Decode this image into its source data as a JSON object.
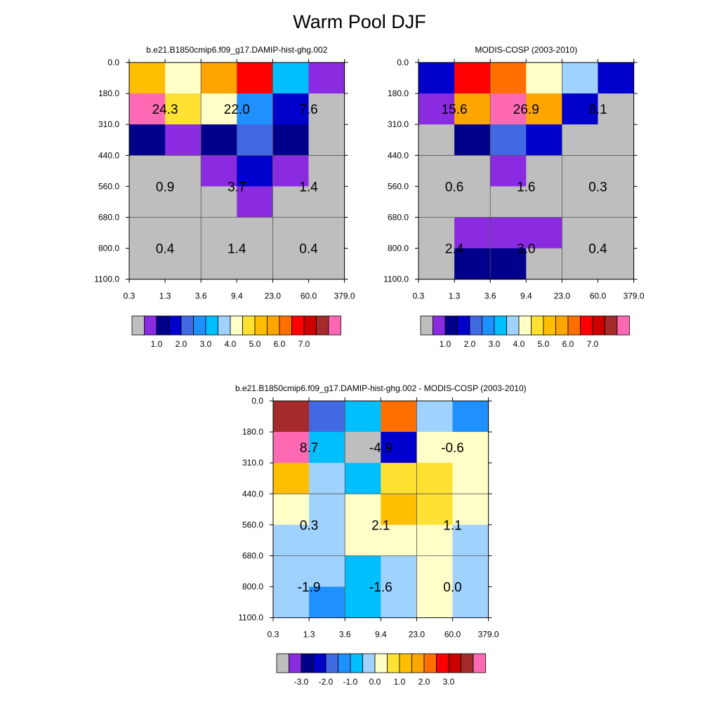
{
  "figure": {
    "title": "Warm Pool DJF"
  },
  "palette": {
    "c0": "#bebebe",
    "c1": "#8a2be2",
    "c2": "#00008b",
    "c3": "#0000cd",
    "c4": "#4169e1",
    "c5": "#1e90ff",
    "c6": "#00bfff",
    "c7": "#a0d2ff",
    "c8": "#ffffc8",
    "c9": "#ffe132",
    "c10": "#ffbf00",
    "c11": "#ffa500",
    "c12": "#ff6f00",
    "c13": "#ff0000",
    "c14": "#cd0000",
    "c15": "#a52a2a",
    "c16": "#ff69b4"
  },
  "chart_data": [
    {
      "type": "heatmap",
      "title": "b.e21.B1850cmip6.f09_g17.DAMIP-hist-ghg.002",
      "x_tick_labels": [
        "0.3",
        "1.3",
        "3.6",
        "9.4",
        "23.0",
        "60.0",
        "379.0"
      ],
      "y_tick_labels": [
        "0.0",
        "180.0",
        "310.0",
        "440.0",
        "560.0",
        "680.0",
        "800.0",
        "1100.0"
      ],
      "cell_color_index": [
        [
          10,
          8,
          11,
          13,
          6,
          1
        ],
        [
          16,
          9,
          8,
          5,
          3,
          0
        ],
        [
          2,
          1,
          2,
          4,
          2,
          0
        ],
        [
          0,
          0,
          1,
          3,
          1,
          0
        ],
        [
          0,
          0,
          0,
          1,
          0,
          0
        ],
        [
          0,
          0,
          0,
          0,
          0,
          0
        ],
        [
          0,
          0,
          0,
          0,
          0,
          0
        ]
      ],
      "block_values": [
        [
          "24.3",
          "22.0",
          "7.6"
        ],
        [
          "0.9",
          "3.7",
          "1.4"
        ],
        [
          "0.4",
          "1.4",
          "0.4"
        ]
      ],
      "colorbar": {
        "colors": [
          "c0",
          "c1",
          "c2",
          "c3",
          "c4",
          "c5",
          "c6",
          "c7",
          "c8",
          "c9",
          "c10",
          "c11",
          "c12",
          "c13",
          "c14",
          "c15",
          "c16"
        ],
        "labels": [
          "1.0",
          "2.0",
          "3.0",
          "4.0",
          "5.0",
          "6.0",
          "7.0"
        ]
      }
    },
    {
      "type": "heatmap",
      "title": "MODIS-COSP (2003-2010)",
      "x_tick_labels": [
        "0.3",
        "1.3",
        "3.6",
        "9.4",
        "23.0",
        "60.0",
        "379.0"
      ],
      "y_tick_labels": [
        "0.0",
        "180.0",
        "310.0",
        "440.0",
        "560.0",
        "680.0",
        "800.0",
        "1100.0"
      ],
      "cell_color_index": [
        [
          3,
          13,
          12,
          8,
          7,
          3
        ],
        [
          1,
          11,
          16,
          11,
          3,
          0
        ],
        [
          0,
          2,
          4,
          3,
          0,
          0
        ],
        [
          0,
          0,
          1,
          0,
          0,
          0
        ],
        [
          0,
          0,
          0,
          0,
          0,
          0
        ],
        [
          0,
          1,
          1,
          1,
          0,
          0
        ],
        [
          0,
          2,
          2,
          0,
          0,
          0
        ]
      ],
      "block_values": [
        [
          "15.6",
          "26.9",
          "8.1"
        ],
        [
          "0.6",
          "1.6",
          "0.3"
        ],
        [
          "2.4",
          "3.0",
          "0.4"
        ]
      ],
      "colorbar": {
        "colors": [
          "c0",
          "c1",
          "c2",
          "c3",
          "c4",
          "c5",
          "c6",
          "c7",
          "c8",
          "c9",
          "c10",
          "c11",
          "c12",
          "c13",
          "c14",
          "c15",
          "c16"
        ],
        "labels": [
          "1.0",
          "2.0",
          "3.0",
          "4.0",
          "5.0",
          "6.0",
          "7.0"
        ]
      }
    },
    {
      "type": "heatmap",
      "title": "b.e21.B1850cmip6.f09_g17.DAMIP-hist-ghg.002 - MODIS-COSP (2003-2010)",
      "x_tick_labels": [
        "0.3",
        "1.3",
        "3.6",
        "9.4",
        "23.0",
        "60.0",
        "379.0"
      ],
      "y_tick_labels": [
        "0.0",
        "180.0",
        "310.0",
        "440.0",
        "560.0",
        "680.0",
        "800.0",
        "1100.0"
      ],
      "cell_color_index": [
        [
          15,
          4,
          6,
          12,
          7,
          5
        ],
        [
          16,
          6,
          0,
          3,
          8,
          8
        ],
        [
          10,
          7,
          6,
          9,
          9,
          8
        ],
        [
          8,
          7,
          8,
          10,
          9,
          8
        ],
        [
          7,
          7,
          8,
          8,
          8,
          7
        ],
        [
          7,
          7,
          6,
          7,
          8,
          7
        ],
        [
          7,
          5,
          6,
          7,
          8,
          7
        ]
      ],
      "block_values": [
        [
          "8.7",
          "-4.9",
          "-0.6"
        ],
        [
          "0.3",
          "2.1",
          "1.1"
        ],
        [
          "-1.9",
          "-1.6",
          "0.0"
        ]
      ],
      "colorbar": {
        "colors": [
          "c0",
          "c1",
          "c2",
          "c3",
          "c4",
          "c5",
          "c6",
          "c7",
          "c8",
          "c9",
          "c10",
          "c11",
          "c12",
          "c13",
          "c14",
          "c15",
          "c16"
        ],
        "labels": [
          "-3.0",
          "-2.0",
          "-1.0",
          "0.0",
          "1.0",
          "2.0",
          "3.0"
        ]
      }
    }
  ]
}
